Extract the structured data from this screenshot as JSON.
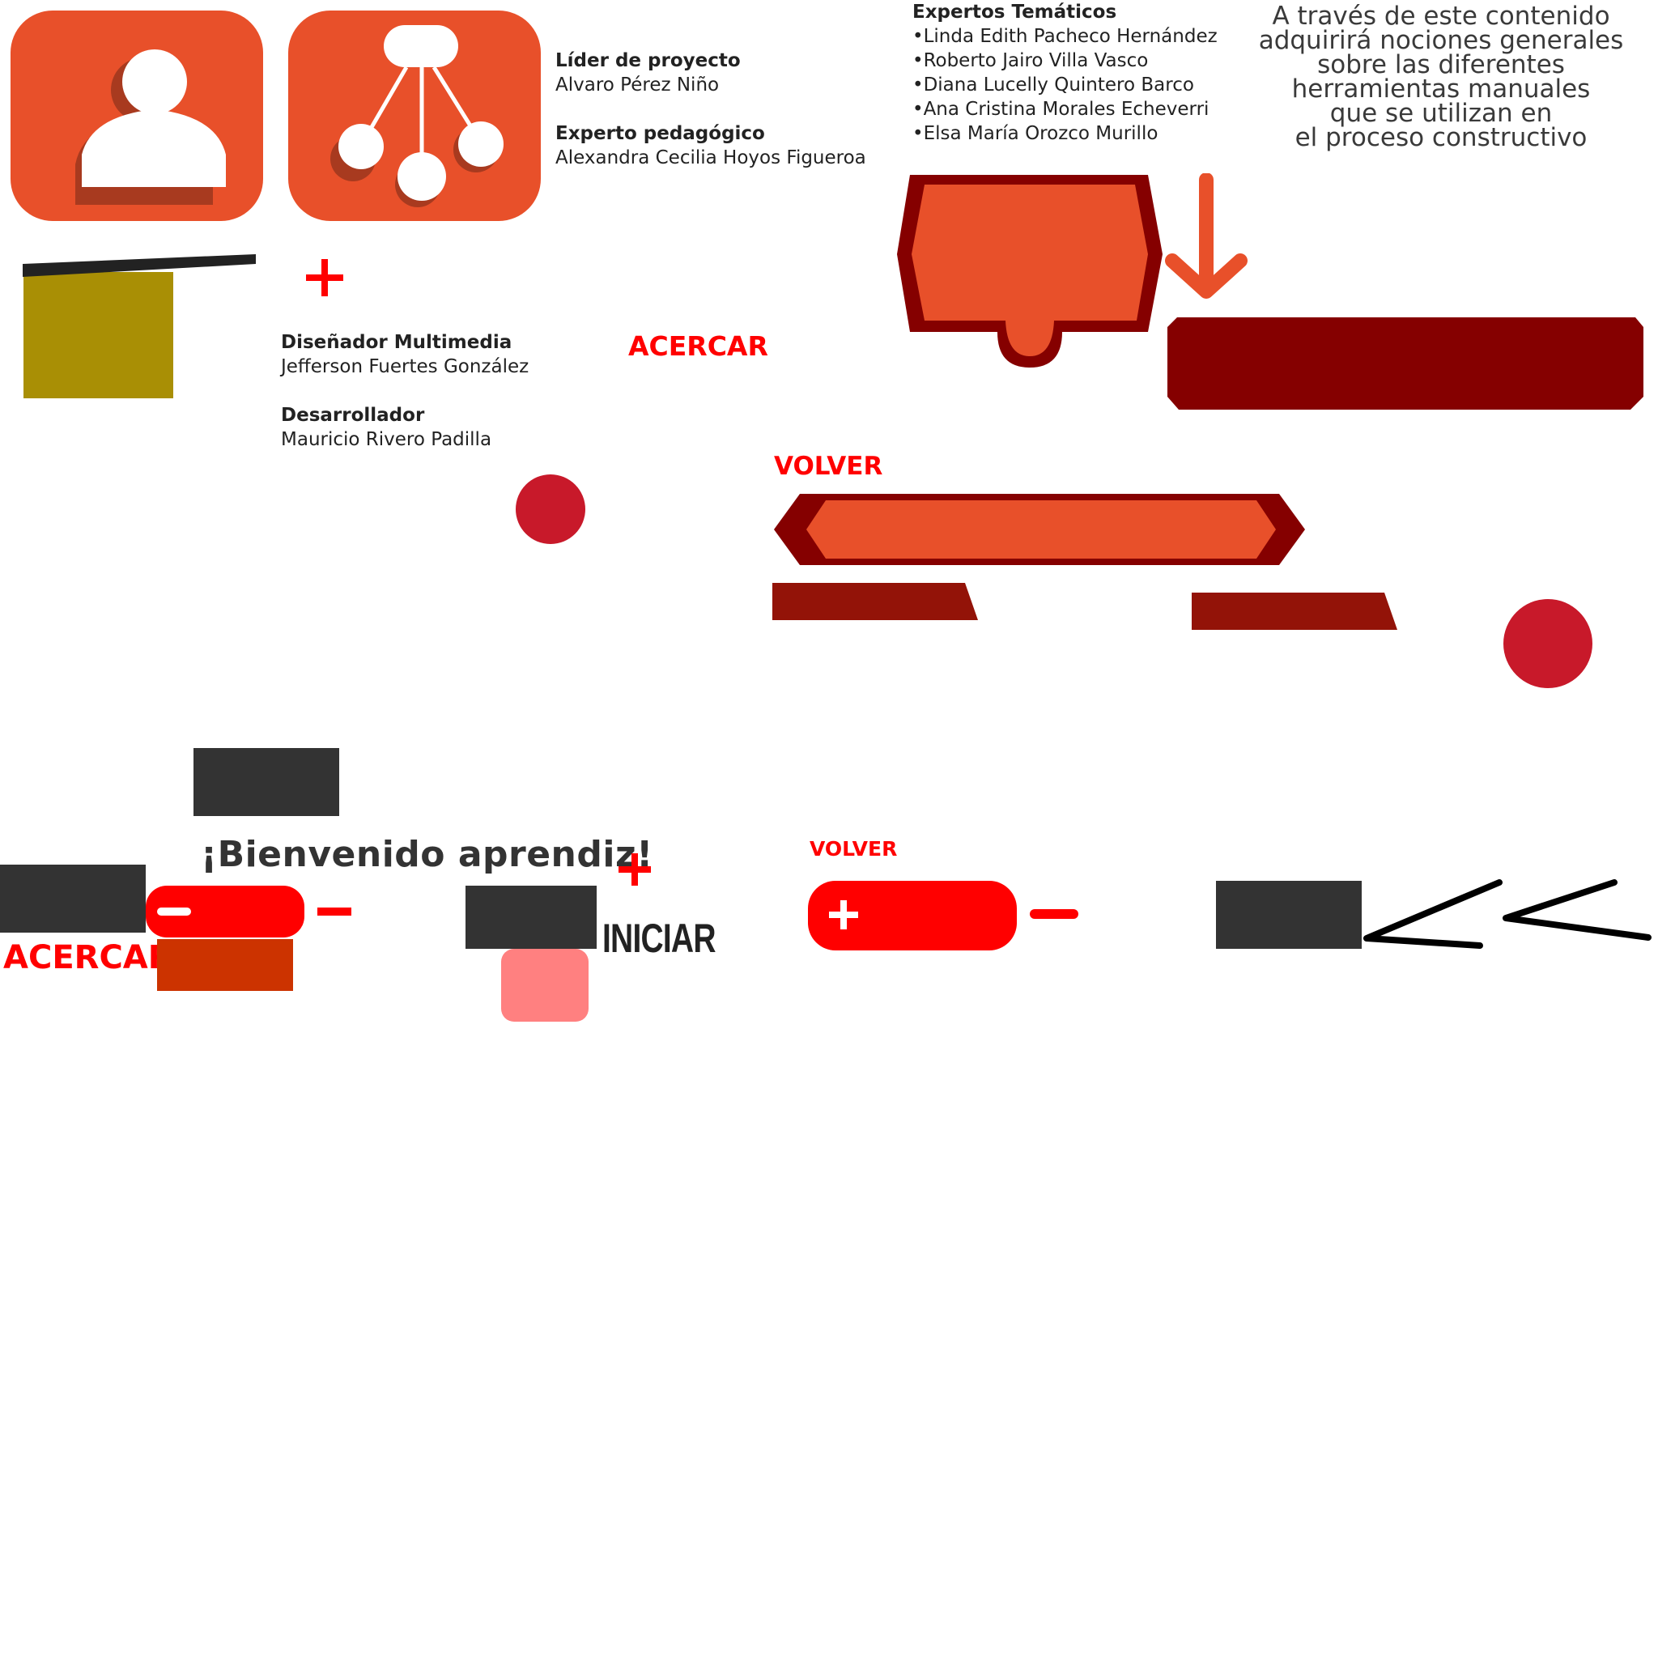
{
  "credits": {
    "lider_role": "Líder de proyecto",
    "lider_name": "Alvaro Pérez Niño",
    "pedagogo_role": "Experto pedagógico",
    "pedagogo_name": "Alexandra Cecilia Hoyos Figueroa",
    "disenador_role": "Diseñador Multimedia",
    "disenador_name": "Jefferson Fuertes González",
    "desarrollador_role": "Desarrollador",
    "desarrollador_name": "Mauricio Rivero Padilla"
  },
  "experts": {
    "title": "Expertos Temáticos",
    "items": [
      "•Linda Edith Pacheco Hernández",
      "•Roberto Jairo Villa Vasco",
      "•Diana Lucelly Quintero Barco",
      "•Ana Cristina Morales Echeverri",
      "•Elsa María Orozco Murillo"
    ]
  },
  "intro_text": "A través de este contenido\nadquirirá nociones generales\nsobre las diferentes\nherramientas manuales\nque se utilizan en\nel proceso constructivo",
  "labels": {
    "acercar_top": "ACERCAR",
    "volver_mid": "VOLVER",
    "welcome": "¡Bienvenido aprendiz!",
    "acercar_bottom": "ACERCAR",
    "iniciar": "INICIAR",
    "volver_bottom": "VOLVER"
  },
  "icons": {
    "user": "user-icon",
    "network": "network-icon",
    "plus": "plus-icon",
    "minus": "minus-icon",
    "arrow_down": "arrow-down-icon",
    "chevron_left": "chevron-left-icon"
  },
  "colors": {
    "orange": "#e8502a",
    "dark_red": "#850000",
    "bright_red": "#ff0000",
    "crimson": "#c8192a",
    "dark_gray": "#333333",
    "olive": "#a98f05",
    "salmon": "#ff8080",
    "rust": "#cc3300"
  }
}
